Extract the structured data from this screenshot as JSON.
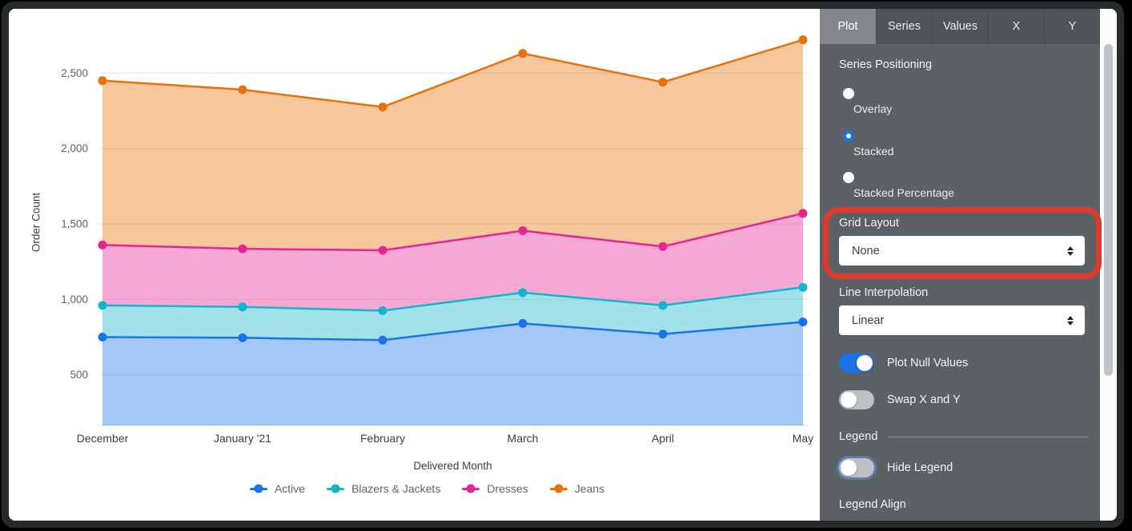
{
  "chart": {
    "y_axis_title": "Order Count",
    "x_axis_title": "Delivered Month",
    "ytick_labels": [
      "500",
      "1,000",
      "1,500",
      "2,000",
      "2,500"
    ]
  },
  "chart_data": {
    "type": "area",
    "stacking": "stacked",
    "title": "",
    "xlabel": "Delivered Month",
    "ylabel": "Order Count",
    "x": [
      "December",
      "January '21",
      "February",
      "March",
      "April",
      "May"
    ],
    "series": [
      {
        "name": "Active",
        "color": "#1A73E8",
        "values": [
          750,
          745,
          730,
          840,
          770,
          850
        ]
      },
      {
        "name": "Blazers & Jackets",
        "color": "#12B5CB",
        "values": [
          210,
          205,
          195,
          205,
          190,
          230
        ]
      },
      {
        "name": "Dresses",
        "color": "#E52592",
        "values": [
          400,
          385,
          400,
          410,
          390,
          490
        ]
      },
      {
        "name": "Jeans",
        "color": "#E8710A",
        "values": [
          1090,
          1055,
          950,
          1175,
          1090,
          1150
        ]
      }
    ],
    "stacked_totals": {
      "Active": [
        750,
        745,
        730,
        840,
        770,
        850
      ],
      "Blazers & Jackets": [
        960,
        950,
        925,
        1045,
        960,
        1080
      ],
      "Dresses": [
        1360,
        1335,
        1325,
        1455,
        1350,
        1570
      ],
      "Jeans": [
        2450,
        2390,
        2275,
        2630,
        2440,
        2720
      ]
    },
    "ytick_values": [
      500,
      1000,
      1500,
      2000,
      2500
    ],
    "ylim": [
      150,
      2780
    ],
    "grid": "horizontal",
    "legend_position": "bottom",
    "fill_opacity": 0.4
  },
  "panel": {
    "accent_color": "#1A73E8",
    "tabs": [
      {
        "label": "Plot",
        "active": true
      },
      {
        "label": "Series",
        "active": false
      },
      {
        "label": "Values",
        "active": false
      },
      {
        "label": "X",
        "active": false
      },
      {
        "label": "Y",
        "active": false
      }
    ],
    "series_positioning": {
      "label": "Series Positioning",
      "options": [
        {
          "label": "Overlay",
          "selected": false
        },
        {
          "label": "Stacked",
          "selected": true
        },
        {
          "label": "Stacked Percentage",
          "selected": false
        }
      ]
    },
    "grid_layout": {
      "label": "Grid Layout",
      "value": "None"
    },
    "line_interpolation": {
      "label": "Line Interpolation",
      "value": "Linear"
    },
    "plot_null_values": {
      "label": "Plot Null Values",
      "on": true
    },
    "swap_x_y": {
      "label": "Swap X and Y",
      "on": false
    },
    "legend": {
      "section_label": "Legend",
      "hide_legend": {
        "label": "Hide Legend",
        "on": false
      },
      "legend_align_label": "Legend Align"
    }
  },
  "annotation": {
    "shape": "rounded-rect-highlight",
    "color": "#E0392B",
    "target": "grid-layout-setting"
  }
}
